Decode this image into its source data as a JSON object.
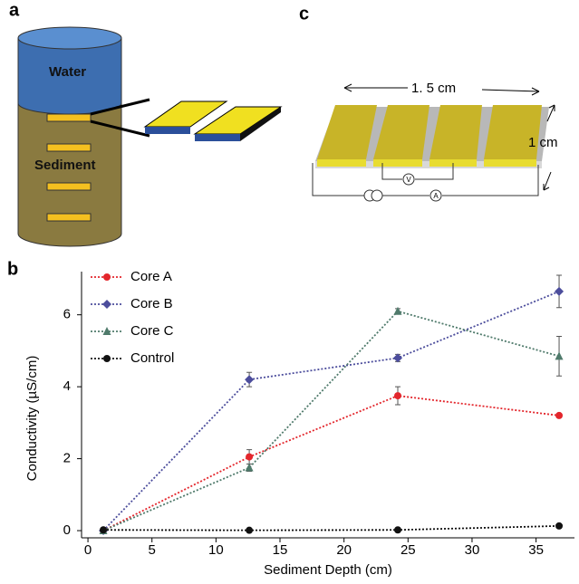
{
  "panels": {
    "a": {
      "label": "a",
      "water": "Water",
      "sediment": "Sediment"
    },
    "c": {
      "label": "c",
      "width": "1. 5 cm",
      "height": "1 cm",
      "voltmeter": "V",
      "ammeter": "A"
    },
    "b": {
      "label": "b"
    }
  },
  "chart_data": {
    "type": "line",
    "x_label": "Sediment Depth (cm)",
    "y_label": "Conductivity (µS/cm)",
    "x": [
      1.2,
      12.6,
      24.2,
      36.8
    ],
    "series": [
      {
        "name": "Core A",
        "color": "#e3262c",
        "marker": "circle",
        "values": [
          0,
          2.05,
          3.75,
          3.2
        ],
        "errors": [
          0,
          0.2,
          0.25,
          0.05
        ]
      },
      {
        "name": "Core B",
        "color": "#4c4d9c",
        "marker": "diamond",
        "values": [
          0,
          4.2,
          4.8,
          6.65
        ],
        "errors": [
          0,
          0.2,
          0.1,
          0.45
        ]
      },
      {
        "name": "Core C",
        "color": "#4f7a6b",
        "marker": "triangle",
        "values": [
          0,
          1.75,
          6.1,
          4.85
        ],
        "errors": [
          0,
          0.1,
          0.07,
          0.55
        ]
      },
      {
        "name": "Control",
        "color": "#111111",
        "marker": "circle",
        "values": [
          0.02,
          0.01,
          0.02,
          0.13
        ],
        "errors": [
          0,
          0,
          0,
          0
        ]
      }
    ],
    "xlim": [
      -0.5,
      38
    ],
    "ylim": [
      -0.2,
      7.2
    ],
    "xticks": [
      0,
      5,
      10,
      15,
      20,
      25,
      30,
      35
    ],
    "yticks": [
      0,
      2,
      4,
      6
    ],
    "legend": "upper left",
    "line_style": "dotted"
  }
}
